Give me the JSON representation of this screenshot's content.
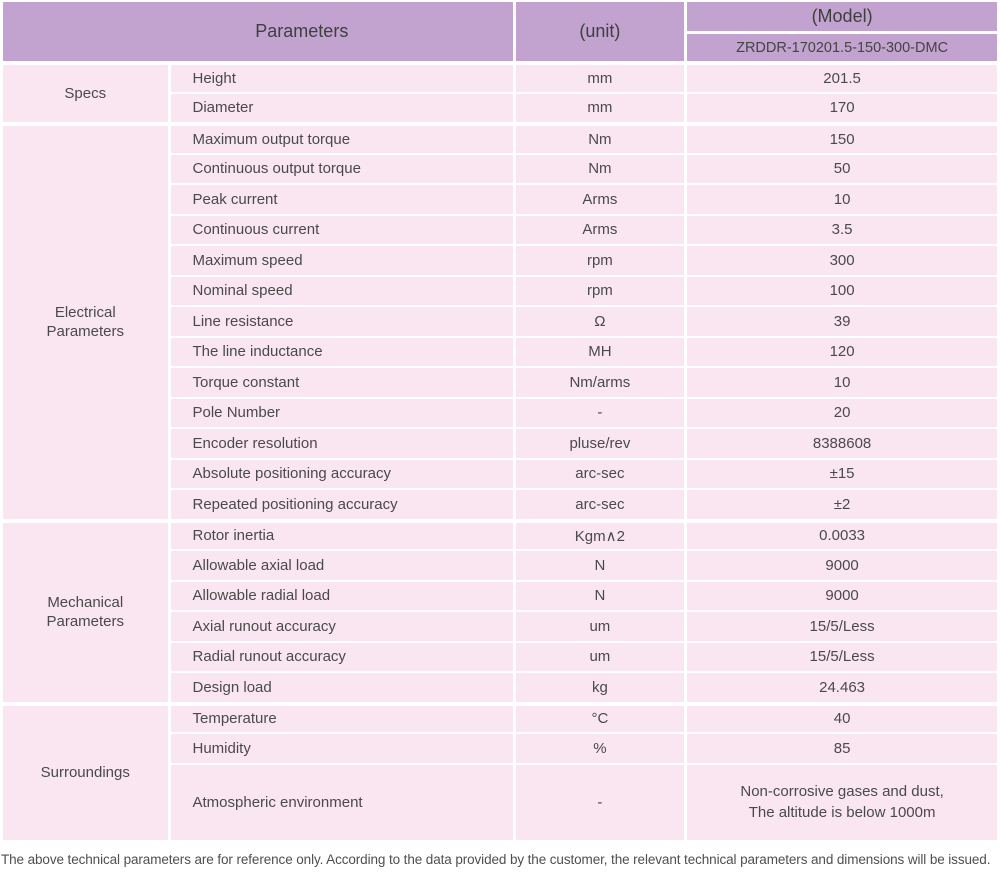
{
  "header": {
    "parameters_label": "Parameters",
    "unit_label": "(unit)",
    "model_label": "(Model)",
    "model_value": "ZRDDR-170201.5-150-300-DMC"
  },
  "sections": [
    {
      "label": "Specs",
      "rows": [
        {
          "param": "Height",
          "unit": "mm",
          "value": "201.5"
        },
        {
          "param": "Diameter",
          "unit": "mm",
          "value": "170"
        }
      ]
    },
    {
      "label": "Electrical\nParameters",
      "rows": [
        {
          "param": "Maximum output torque",
          "unit": "Nm",
          "value": "150"
        },
        {
          "param": "Continuous output torque",
          "unit": "Nm",
          "value": "50"
        },
        {
          "param": "Peak current",
          "unit": "Arms",
          "value": "10"
        },
        {
          "param": "Continuous current",
          "unit": "Arms",
          "value": "3.5"
        },
        {
          "param": "Maximum speed",
          "unit": "rpm",
          "value": "300"
        },
        {
          "param": "Nominal speed",
          "unit": "rpm",
          "value": "100"
        },
        {
          "param": "Line resistance",
          "unit": "Ω",
          "value": "39"
        },
        {
          "param": "The line inductance",
          "unit": "MH",
          "value": "120"
        },
        {
          "param": "Torque constant",
          "unit": "Nm/arms",
          "value": "10"
        },
        {
          "param": "Pole Number",
          "unit": "-",
          "value": "20"
        },
        {
          "param": "Encoder resolution",
          "unit": "pluse/rev",
          "value": "8388608"
        },
        {
          "param": "Absolute positioning accuracy",
          "unit": "arc-sec",
          "value": "±15"
        },
        {
          "param": "Repeated positioning accuracy",
          "unit": "arc-sec",
          "value": "±2"
        }
      ]
    },
    {
      "label": "Mechanical\nParameters",
      "rows": [
        {
          "param": "Rotor inertia",
          "unit": "Kgm∧2",
          "value": "0.0033"
        },
        {
          "param": "Allowable axial load",
          "unit": "N",
          "value": "9000"
        },
        {
          "param": "Allowable radial load",
          "unit": "N",
          "value": "9000"
        },
        {
          "param": "Axial runout accuracy",
          "unit": "um",
          "value": "15/5/Less"
        },
        {
          "param": "Radial runout accuracy",
          "unit": "um",
          "value": "15/5/Less"
        },
        {
          "param": "Design load",
          "unit": "kg",
          "value": "24.463"
        }
      ]
    },
    {
      "label": "Surroundings",
      "rows": [
        {
          "param": "Temperature",
          "unit": "°C",
          "value": "40"
        },
        {
          "param": "Humidity",
          "unit": "%",
          "value": "85"
        },
        {
          "param": "Atmospheric environment",
          "unit": "-",
          "value": "Non-corrosive gases and dust,\nThe altitude is below 1000m"
        }
      ]
    }
  ],
  "footnote": "The above technical parameters are for reference only. According to the data provided by the customer, the relevant technical parameters and dimensions will be issued.",
  "colors": {
    "header_background": "#c2a3cf",
    "row_background": "#fae6f0",
    "text": "#4a4a4a"
  }
}
